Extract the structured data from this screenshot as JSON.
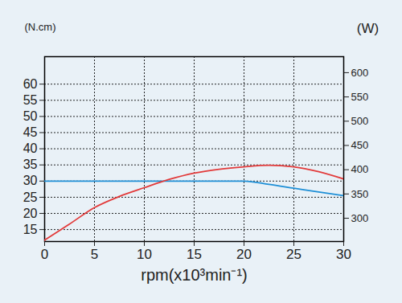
{
  "chart_data": {
    "type": "line",
    "x_label": "rpm(x10³min⁻¹)",
    "y_label": "(N.cm)",
    "y2_label": "(W)",
    "x": [
      0,
      2.5,
      5,
      7.5,
      10,
      12.5,
      15,
      17.5,
      20,
      22.5,
      25,
      27.5,
      30
    ],
    "series": [
      {
        "color": "#1e8fd6",
        "axis": "y",
        "values": [
          30,
          30,
          30,
          30,
          30,
          30,
          30,
          30,
          30,
          29,
          27.8,
          26.6,
          25.5
        ]
      },
      {
        "color": "#e23a3a",
        "axis": "y2",
        "values": [
          255,
          288,
          322,
          345,
          363,
          380,
          393,
          401,
          406,
          409,
          406,
          396,
          381
        ]
      }
    ],
    "xlim": [
      0,
      30
    ],
    "xticks": [
      0,
      5,
      10,
      15,
      20,
      25,
      30
    ],
    "ylim": [
      11.3,
      68.5
    ],
    "yticks": [
      15,
      20,
      25,
      30,
      35,
      40,
      45,
      50,
      55,
      60
    ],
    "y2lim": [
      252,
      633
    ],
    "y2ticks": [
      300,
      350,
      400,
      450,
      500,
      550,
      600
    ],
    "grid": true
  }
}
